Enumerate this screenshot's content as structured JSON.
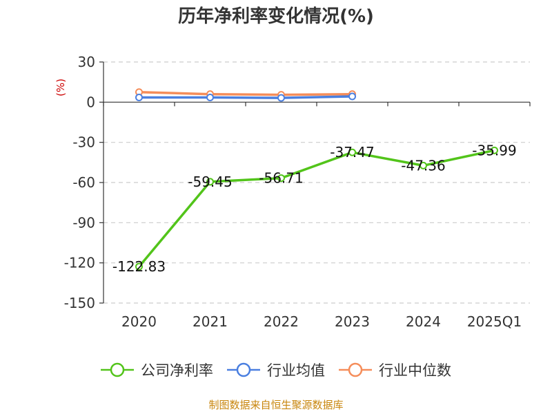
{
  "chart_data": {
    "type": "line",
    "title": "历年净利率变化情况(%)",
    "ylabel": "(%)",
    "xlabel": "",
    "categories": [
      "2020",
      "2021",
      "2022",
      "2023",
      "2024",
      "2025Q1"
    ],
    "ylim": [
      -150,
      30
    ],
    "yticks": [
      30,
      0,
      -30,
      -60,
      -90,
      -120,
      -150
    ],
    "grid": true,
    "legend_position": "bottom",
    "series": [
      {
        "name": "公司净利率",
        "color": "#52c41a",
        "values": [
          -122.83,
          -59.45,
          -56.71,
          -37.47,
          -47.36,
          -35.99
        ],
        "labels": [
          "-122.83",
          "-59.45",
          "-56.71",
          "-37.47",
          "-47.36",
          "-35.99"
        ]
      },
      {
        "name": "行业均值",
        "color": "#4a7fe0",
        "values": [
          3.5,
          3.5,
          3.2,
          4.3,
          null,
          null
        ]
      },
      {
        "name": "行业中位数",
        "color": "#f58d5a",
        "values": [
          7.5,
          6.0,
          5.5,
          6.0,
          null,
          null
        ]
      }
    ],
    "source": "制图数据来自恒生聚源数据库"
  }
}
